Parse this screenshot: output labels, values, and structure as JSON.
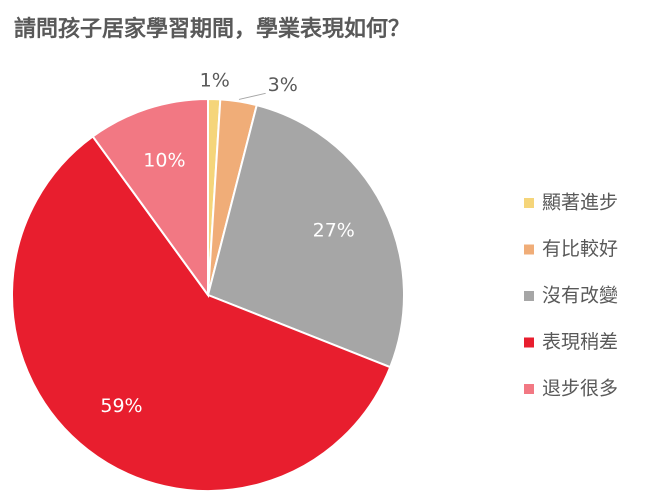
{
  "chart_data": {
    "type": "pie",
    "title": "請問孩子居家學習期間，學業表現如何？",
    "categories": [
      "顯著進步",
      "有比較好",
      "沒有改變",
      "表現稍差",
      "退步很多"
    ],
    "values": [
      1,
      3,
      27,
      59,
      10
    ],
    "value_labels": [
      "1%",
      "3%",
      "27%",
      "59%",
      "10%"
    ],
    "colors": [
      "#f5d57a",
      "#f0ad78",
      "#a6a6a6",
      "#e81e2e",
      "#f27883"
    ],
    "legend": "right"
  }
}
